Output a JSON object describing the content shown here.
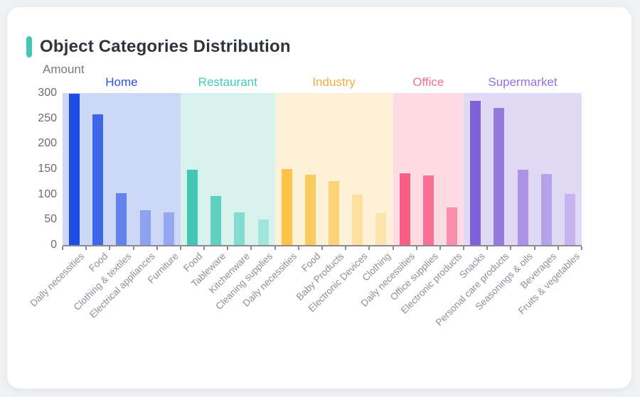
{
  "header": {
    "title": "Object Categories Distribution"
  },
  "chart_data": {
    "type": "bar",
    "title": "Object Categories Distribution",
    "ylabel": "Amount",
    "xlabel": "",
    "ylim": [
      0,
      300
    ],
    "yticks": [
      0,
      50,
      100,
      150,
      200,
      250,
      300
    ],
    "grid": false,
    "legend_position": "grouped-headers-above-plot",
    "groups": [
      {
        "name": "Home",
        "title_color": "#2c50e8",
        "band_color": "#cdd8f6",
        "categories": [
          "Daily necessities",
          "Food",
          "Clothing & textiles",
          "Electrical appliances",
          "Furniture"
        ],
        "values": [
          298,
          258,
          102,
          69,
          64
        ],
        "bar_colors": [
          "#1d4de4",
          "#3f66e8",
          "#6282ec",
          "#8da2f1",
          "#95a9f2"
        ]
      },
      {
        "name": "Restaurant",
        "title_color": "#41ccba",
        "band_color": "#d7f1ed",
        "categories": [
          "Food",
          "Tableware",
          "Kitchenware",
          "Cleaning supplies"
        ],
        "values": [
          149,
          97,
          65,
          51
        ],
        "bar_colors": [
          "#41c8b4",
          "#62d0c1",
          "#84dcd1",
          "#9fe5dc"
        ]
      },
      {
        "name": "Industry",
        "title_color": "#efae43",
        "band_color": "#fdf2d7",
        "categories": [
          "Daily necessities",
          "Food",
          "Baby Products",
          "Electronic Devices",
          "Clothing"
        ],
        "values": [
          150,
          139,
          126,
          99,
          63
        ],
        "bar_colors": [
          "#fdc247",
          "#fccb5f",
          "#fcd377",
          "#fddf9e",
          "#fde4ad"
        ]
      },
      {
        "name": "Office",
        "title_color": "#fa6e93",
        "band_color": "#fedbe5",
        "categories": [
          "Daily necessities",
          "Office supplies",
          "Electronic products"
        ],
        "values": [
          142,
          138,
          74
        ],
        "bar_colors": [
          "#fa5e85",
          "#fa7095",
          "#fb8fae"
        ]
      },
      {
        "name": "Supermarket",
        "title_color": "#8d74e0",
        "band_color": "#e0daf6",
        "categories": [
          "Snacks",
          "Personal care products",
          "Seasonings & oils",
          "Beverages",
          "Fruits & vegetables"
        ],
        "values": [
          284,
          271,
          148,
          140,
          101
        ],
        "bar_colors": [
          "#7e63d8",
          "#927ade",
          "#ab93e5",
          "#b5a2e9",
          "#c6b4ee"
        ]
      }
    ]
  },
  "layout_colors": {
    "page_background": "#eff1f3",
    "card_background": "#ffffff",
    "accent_bar": "#41c8b5",
    "axis_line": "#8b8b95",
    "y_label_text": "#6b6b6b",
    "x_label_text": "#8e8f9a",
    "title_text": "#30343c"
  }
}
